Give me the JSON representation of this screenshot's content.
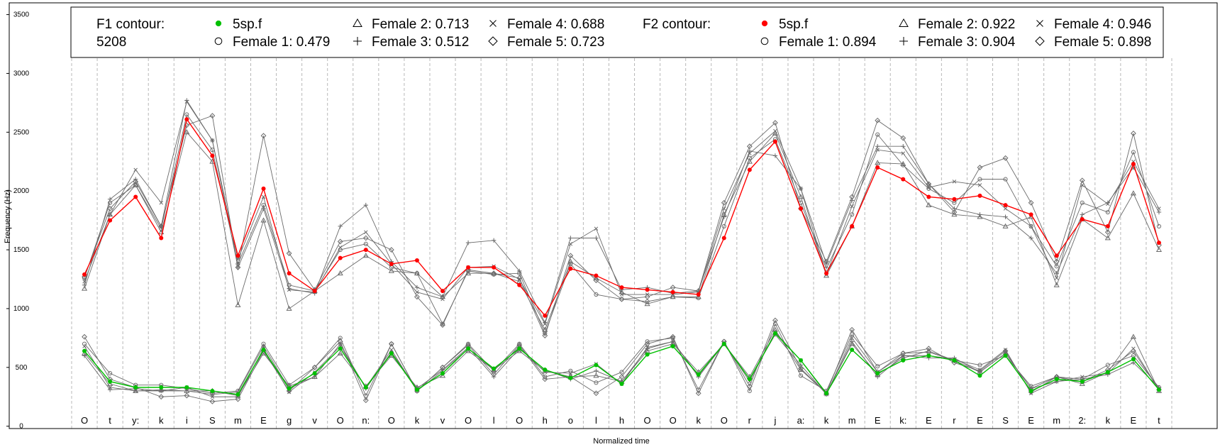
{
  "chart_data": {
    "type": "line",
    "xlabel": "Normalized time",
    "ylabel": "Frequency (Hz)",
    "ylim": [
      -20,
      3600
    ],
    "yticks": [
      0,
      500,
      1000,
      1500,
      2000,
      2500,
      3000,
      3500
    ],
    "grid": "vertical dashed segment boundaries",
    "legend_position": "top",
    "segments": [
      "O",
      "t",
      "y:",
      "k",
      "i",
      "S",
      "m",
      "E",
      "g",
      "v",
      "O",
      "n:",
      "O",
      "k",
      "v",
      "O",
      "l",
      "O",
      "h",
      "o",
      "l",
      "h",
      "O",
      "O",
      "k",
      "O",
      "r",
      "j",
      "a:",
      "k",
      "m",
      "E",
      "k:",
      "E",
      "r",
      "E",
      "S",
      "E",
      "m",
      "2:",
      "k",
      "E",
      "t"
    ],
    "legend": {
      "f1": {
        "title": "F1 contour:",
        "subtitle": "5208",
        "entries": [
          {
            "marker": "filled-circle",
            "label": "5sp.f",
            "color": "#00c000"
          },
          {
            "marker": "open-circle",
            "label": "Female 1: 0.479"
          },
          {
            "marker": "triangle",
            "label": "Female 2: 0.713"
          },
          {
            "marker": "plus",
            "label": "Female 3: 0.512"
          },
          {
            "marker": "cross",
            "label": "Female 4: 0.688"
          },
          {
            "marker": "diamond",
            "label": "Female 5: 0.723"
          }
        ]
      },
      "f2": {
        "title": "F2 contour:",
        "entries": [
          {
            "marker": "filled-circle",
            "label": "5sp.f",
            "color": "#ff0000"
          },
          {
            "marker": "open-circle",
            "label": "Female 1: 0.894"
          },
          {
            "marker": "triangle",
            "label": "Female 2: 0.922"
          },
          {
            "marker": "plus",
            "label": "Female 3: 0.904"
          },
          {
            "marker": "cross",
            "label": "Female 4: 0.946"
          },
          {
            "marker": "diamond",
            "label": "Female 5: 0.898"
          }
        ]
      }
    },
    "series": {
      "f1_5sp": {
        "name": "5sp.f",
        "color": "#00c000",
        "values": [
          640,
          380,
          330,
          330,
          330,
          300,
          270,
          650,
          320,
          450,
          660,
          330,
          620,
          310,
          450,
          660,
          490,
          660,
          480,
          410,
          520,
          360,
          610,
          680,
          440,
          700,
          400,
          790,
          560,
          280,
          650,
          450,
          560,
          600,
          560,
          430,
          600,
          300,
          400,
          380,
          460,
          570,
          310
        ]
      },
      "f2_5sp": {
        "name": "5sp.f",
        "color": "#ff0000",
        "values": [
          1290,
          1750,
          1950,
          1600,
          2610,
          2300,
          1450,
          2020,
          1300,
          1150,
          1430,
          1500,
          1380,
          1410,
          1150,
          1350,
          1350,
          1200,
          940,
          1340,
          1280,
          1180,
          1160,
          1140,
          1120,
          1600,
          2180,
          2420,
          1850,
          1300,
          1700,
          2200,
          2100,
          1950,
          1930,
          1960,
          1880,
          1800,
          1450,
          1760,
          1700,
          2230,
          1560
        ]
      },
      "f1_speakers": [
        {
          "values": [
            700,
            450,
            350,
            350,
            320,
            280,
            300,
            700,
            350,
            500,
            750,
            260,
            700,
            300,
            500,
            700,
            470,
            700,
            420,
            470,
            370,
            460,
            720,
            750,
            310,
            720,
            300,
            870,
            430,
            300,
            780,
            510,
            620,
            630,
            560,
            520,
            600,
            340,
            420,
            400,
            520,
            600,
            330
          ]
        },
        {
          "values": [
            620,
            360,
            300,
            310,
            300,
            300,
            260,
            620,
            340,
            420,
            620,
            340,
            600,
            330,
            430,
            640,
            480,
            640,
            470,
            420,
            430,
            380,
            640,
            700,
            460,
            700,
            420,
            820,
            480,
            280,
            700,
            440,
            580,
            640,
            560,
            460,
            620,
            320,
            420,
            360,
            460,
            760,
            300
          ]
        },
        {
          "values": [
            600,
            310,
            320,
            300,
            300,
            270,
            290,
            680,
            320,
            420,
            700,
            320,
            630,
            320,
            480,
            670,
            420,
            660,
            480,
            400,
            470,
            380,
            660,
            720,
            420,
            700,
            400,
            780,
            520,
            270,
            720,
            420,
            600,
            580,
            580,
            460,
            620,
            320,
            380,
            400,
            440,
            540,
            330
          ]
        },
        {
          "values": [
            680,
            330,
            300,
            300,
            330,
            250,
            250,
            660,
            290,
            460,
            680,
            330,
            650,
            300,
            470,
            660,
            480,
            670,
            460,
            450,
            530,
            360,
            670,
            720,
            430,
            710,
            380,
            800,
            560,
            270,
            750,
            460,
            600,
            600,
            570,
            480,
            650,
            280,
            380,
            420,
            450,
            660,
            310
          ]
        },
        {
          "values": [
            760,
            400,
            330,
            250,
            260,
            210,
            230,
            640,
            300,
            500,
            720,
            220,
            700,
            300,
            500,
            690,
            440,
            690,
            400,
            420,
            280,
            420,
            700,
            760,
            280,
            720,
            340,
            900,
            490,
            280,
            820,
            460,
            620,
            660,
            540,
            470,
            640,
            290,
            420,
            380,
            480,
            640,
            310
          ]
        }
      ],
      "f2_speakers": [
        {
          "values": [
            1260,
            1900,
            2050,
            1680,
            2650,
            2350,
            1380,
            1880,
            1200,
            1150,
            1500,
            1550,
            1350,
            1300,
            870,
            1320,
            1290,
            1300,
            790,
            1380,
            1120,
            1080,
            1060,
            1100,
            1090,
            1700,
            2280,
            2440,
            1900,
            1340,
            1800,
            2480,
            2220,
            2020,
            1900,
            2100,
            2100,
            1700,
            1360,
            1900,
            1820,
            2330,
            1700
          ]
        },
        {
          "values": [
            1170,
            1800,
            2050,
            1650,
            2500,
            2250,
            1030,
            1750,
            1000,
            1150,
            1300,
            1450,
            1320,
            1300,
            1100,
            1300,
            1300,
            1230,
            820,
            1400,
            1260,
            1140,
            1040,
            1100,
            1100,
            1800,
            2250,
            2490,
            1950,
            1280,
            1700,
            2240,
            2230,
            1880,
            1800,
            1780,
            1700,
            1780,
            1200,
            1760,
            1600,
            1980,
            1500
          ]
        },
        {
          "values": [
            1200,
            1930,
            2100,
            1700,
            2770,
            2430,
            1350,
            1850,
            1170,
            1130,
            1700,
            1880,
            1400,
            1180,
            1100,
            1560,
            1580,
            1320,
            880,
            1600,
            1600,
            1160,
            1180,
            1130,
            1150,
            1780,
            2340,
            2300,
            2020,
            1380,
            1920,
            2380,
            2380,
            2060,
            1850,
            1800,
            1780,
            1600,
            1300,
            1800,
            1900,
            2200,
            1820
          ]
        },
        {
          "values": [
            1230,
            1800,
            2180,
            1900,
            2760,
            2430,
            1420,
            1950,
            1160,
            1140,
            1520,
            1650,
            1380,
            1140,
            1080,
            1350,
            1360,
            1250,
            870,
            1550,
            1680,
            1120,
            1120,
            1120,
            1140,
            1850,
            2320,
            2510,
            2020,
            1290,
            1870,
            2350,
            2320,
            2030,
            2080,
            2050,
            1850,
            1700,
            1260,
            2050,
            1890,
            2250,
            1850
          ]
        },
        {
          "values": [
            1270,
            1850,
            2080,
            1700,
            2560,
            2640,
            1350,
            2470,
            1470,
            1160,
            1570,
            1600,
            1500,
            1100,
            860,
            1330,
            1300,
            1260,
            770,
            1450,
            1240,
            1080,
            1100,
            1180,
            1150,
            1900,
            2380,
            2580,
            1850,
            1400,
            1950,
            2600,
            2450,
            2060,
            1820,
            2200,
            2280,
            1900,
            1400,
            2090,
            1650,
            2490,
            1540
          ]
        }
      ]
    }
  }
}
